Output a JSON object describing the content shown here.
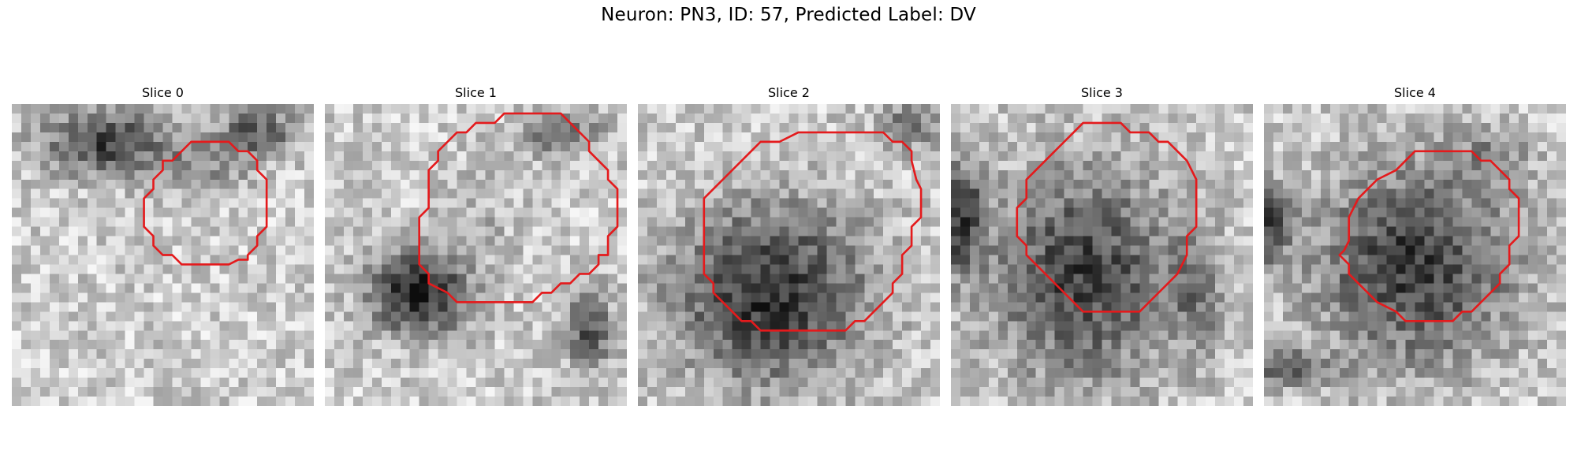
{
  "figure": {
    "title": "Neuron: PN3, ID: 57, Predicted Label: DV"
  },
  "panels": [
    {
      "title": "Slice 0"
    },
    {
      "title": "Slice 1"
    },
    {
      "title": "Slice 2"
    },
    {
      "title": "Slice 3"
    },
    {
      "title": "Slice 4"
    }
  ],
  "colors": {
    "contour": "#e41a1c",
    "background": "#ffffff",
    "colormap": "grayscale"
  }
}
